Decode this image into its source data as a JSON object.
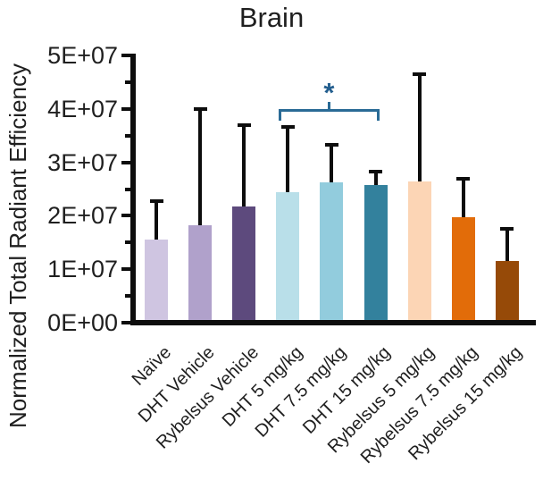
{
  "figure": {
    "title": "Brain"
  },
  "chart_data": {
    "type": "bar",
    "title": "Brain",
    "ylabel": "Normalized Total Radiant Efficiency",
    "xlabel": "",
    "categories": [
      "Naïve",
      "DHT Vehicle",
      "Rybelsus Vehicle",
      "DHT 5 mg/kg",
      "DHT 7.5 mg/kg",
      "DHT 15 mg/kg",
      "Rybelsus 5 mg/kg",
      "Rybelsus 7.5 mg/kg",
      "Rybelsus 15 mg/kg"
    ],
    "values": [
      15500000,
      18300000,
      21800000,
      24400000,
      26200000,
      25800000,
      26400000,
      19700000,
      11500000
    ],
    "errors_plus": [
      7300000,
      21700000,
      15100000,
      12300000,
      7000000,
      2400000,
      20100000,
      7200000,
      6000000
    ],
    "bar_colors": [
      "#cfc5e1",
      "#b0a1cb",
      "#5d4a7d",
      "#b9dfe9",
      "#92ccdd",
      "#33819d",
      "#fcd5b5",
      "#e26c09",
      "#964a08"
    ],
    "ylim": [
      0,
      50000000
    ],
    "y_tick_labels": [
      "0E+00",
      "1E+07",
      "2E+07",
      "3E+07",
      "4E+07",
      "5E+07"
    ],
    "y_minor_tick_step": 5000000,
    "grid": "off",
    "legend": "none",
    "significance_bracket": {
      "label": "*",
      "from": "DHT 5 mg/kg",
      "to": "DHT 15 mg/kg",
      "color": "#2a6b96",
      "label_color": "#235e8e"
    },
    "colors": {
      "axis": "#0d0d0d",
      "error_bar": "#0d0d0d",
      "text": "#1f1f1f"
    }
  }
}
